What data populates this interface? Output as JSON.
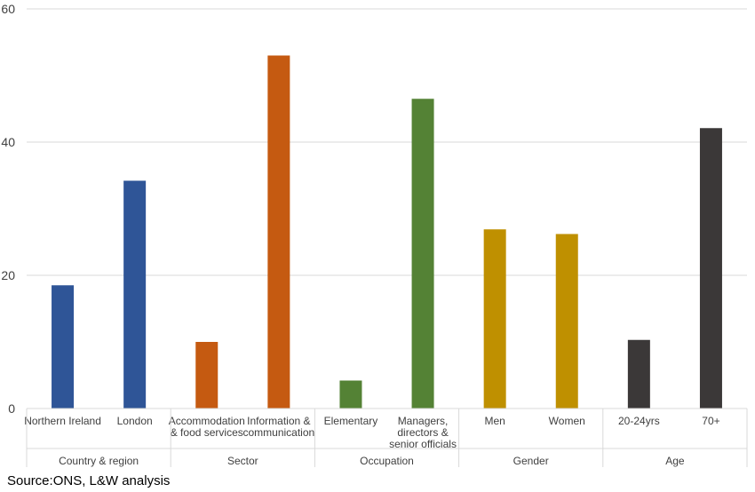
{
  "chart_data": {
    "type": "bar",
    "ylim": [
      0,
      60
    ],
    "yticks": [
      0,
      20,
      40,
      60
    ],
    "grid": true,
    "legend": "none",
    "groups": [
      {
        "label": "Country & region",
        "color": "#2f5597",
        "bars": [
          {
            "lines": [
              "Northern Ireland"
            ],
            "value": 18.5
          },
          {
            "lines": [
              "London"
            ],
            "value": 34.2
          }
        ]
      },
      {
        "label": "Sector",
        "color": "#c55a11",
        "bars": [
          {
            "lines": [
              "Accommodation",
              "& food services"
            ],
            "value": 10.0
          },
          {
            "lines": [
              "Information &",
              "communication"
            ],
            "value": 53.0
          }
        ]
      },
      {
        "label": "Occupation",
        "color": "#548235",
        "bars": [
          {
            "lines": [
              "Elementary"
            ],
            "value": 4.2
          },
          {
            "lines": [
              "Managers,",
              "directors &",
              "senior officials"
            ],
            "value": 46.5
          }
        ]
      },
      {
        "label": "Gender",
        "color": "#bf9000",
        "bars": [
          {
            "lines": [
              "Men"
            ],
            "value": 26.9
          },
          {
            "lines": [
              "Women"
            ],
            "value": 26.2
          }
        ]
      },
      {
        "label": "Age",
        "color": "#3b3838",
        "bars": [
          {
            "lines": [
              "20-24yrs"
            ],
            "value": 10.3
          },
          {
            "lines": [
              "70+"
            ],
            "value": 42.1
          }
        ]
      }
    ]
  },
  "source": "Source:ONS, L&W analysis"
}
